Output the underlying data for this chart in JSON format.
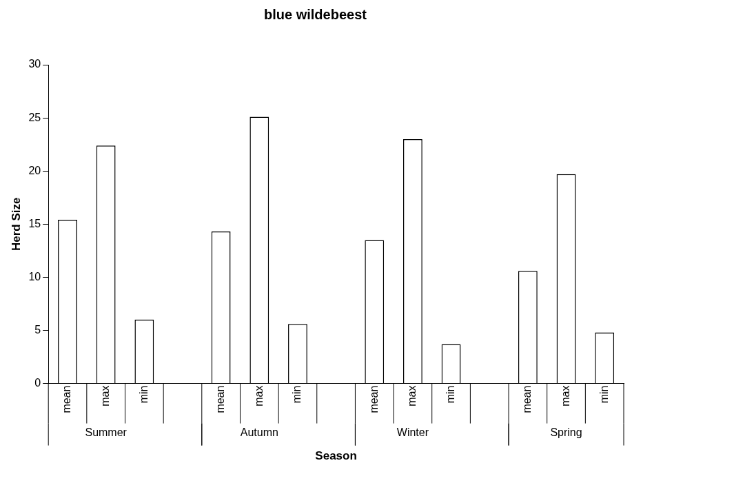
{
  "chart_data": {
    "type": "bar",
    "title": "blue wildebeest",
    "xlabel": "Season",
    "ylabel": "Herd Size",
    "categories": [
      "mean",
      "max",
      "min",
      null,
      "mean",
      "max",
      "min",
      null,
      "mean",
      "max",
      "min",
      null,
      "mean",
      "max",
      "min"
    ],
    "values": [
      15.4,
      22.4,
      6.0,
      null,
      14.3,
      25.1,
      5.6,
      null,
      13.5,
      23.0,
      3.7,
      null,
      10.6,
      19.7,
      4.8
    ],
    "color": "#ffffff",
    "annotations": [
      "Summer",
      "Autumn",
      "Winter",
      "Spring"
    ],
    "ylim": [
      0,
      30
    ],
    "yticks": [
      0,
      5,
      10,
      15,
      20,
      25,
      30
    ],
    "grid": false,
    "legend": false
  }
}
